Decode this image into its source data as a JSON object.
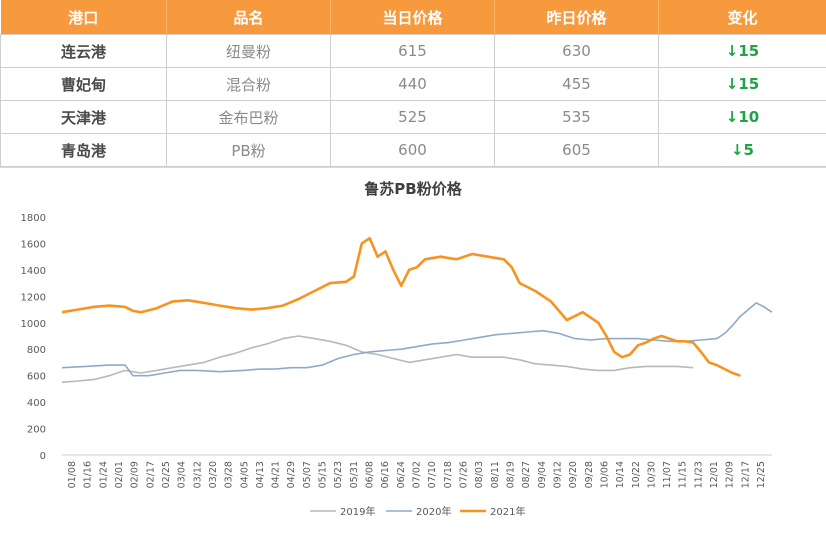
{
  "table": {
    "headers": [
      "港口",
      "品名",
      "当日价格",
      "昨日价格",
      "变化"
    ],
    "rows": [
      {
        "port": "连云港",
        "product": "纽曼粉",
        "today": "615",
        "yesterday": "630",
        "change": "↓15"
      },
      {
        "port": "曹妃甸",
        "product": "混合粉",
        "today": "440",
        "yesterday": "455",
        "change": "↓15"
      },
      {
        "port": "天津港",
        "product": "金布巴粉",
        "today": "525",
        "yesterday": "535",
        "change": "↓10"
      },
      {
        "port": "青岛港",
        "product": "PB粉",
        "today": "600",
        "yesterday": "605",
        "change": "↓5"
      }
    ]
  },
  "colors": {
    "header_bg": "#f79a3e",
    "change_down": "#1fa344",
    "s2019": "#b8b8b8",
    "s2020": "#8eaacb",
    "s2021": "#f7931e"
  },
  "chart_data": {
    "type": "line",
    "title": "鲁苏PB粉价格",
    "xlabel": "",
    "ylabel": "",
    "ylim": [
      0,
      1800
    ],
    "yticks": [
      "0",
      "200",
      "400",
      "600",
      "800",
      "1000",
      "1200",
      "1400",
      "1600",
      "1800"
    ],
    "categories": [
      "01/08",
      "01/16",
      "01/24",
      "02/01",
      "02/09",
      "02/17",
      "02/25",
      "03/04",
      "03/12",
      "03/20",
      "03/28",
      "04/05",
      "04/13",
      "04/21",
      "04/29",
      "05/07",
      "05/15",
      "05/23",
      "05/31",
      "06/08",
      "06/16",
      "06/24",
      "07/02",
      "07/10",
      "07/18",
      "07/26",
      "08/03",
      "08/11",
      "08/19",
      "08/27",
      "09/04",
      "09/12",
      "09/20",
      "09/28",
      "10/06",
      "10/14",
      "10/22",
      "10/30",
      "11/07",
      "11/15",
      "11/23",
      "12/01",
      "12/09",
      "12/17",
      "12/25"
    ],
    "legend_position": "bottom",
    "grid": false,
    "series": [
      {
        "name": "2019年",
        "color": "#b8b8b8",
        "points": [
          [
            0,
            550
          ],
          [
            2,
            560
          ],
          [
            4,
            570
          ],
          [
            6,
            600
          ],
          [
            8,
            640
          ],
          [
            10,
            620
          ],
          [
            12,
            640
          ],
          [
            14,
            660
          ],
          [
            16,
            680
          ],
          [
            18,
            700
          ],
          [
            20,
            740
          ],
          [
            22,
            770
          ],
          [
            24,
            810
          ],
          [
            26,
            840
          ],
          [
            28,
            880
          ],
          [
            30,
            900
          ],
          [
            32,
            880
          ],
          [
            34,
            860
          ],
          [
            36,
            830
          ],
          [
            38,
            780
          ],
          [
            40,
            760
          ],
          [
            42,
            730
          ],
          [
            44,
            700
          ],
          [
            46,
            720
          ],
          [
            48,
            740
          ],
          [
            50,
            760
          ],
          [
            52,
            740
          ],
          [
            54,
            740
          ],
          [
            56,
            740
          ],
          [
            58,
            720
          ],
          [
            60,
            690
          ],
          [
            62,
            680
          ],
          [
            64,
            670
          ],
          [
            66,
            650
          ],
          [
            68,
            640
          ],
          [
            70,
            640
          ],
          [
            72,
            660
          ],
          [
            74,
            670
          ],
          [
            76,
            670
          ],
          [
            78,
            670
          ],
          [
            80,
            660
          ]
        ]
      },
      {
        "name": "2020年",
        "color": "#8eaacb",
        "points": [
          [
            0,
            660
          ],
          [
            3,
            670
          ],
          [
            6,
            680
          ],
          [
            8,
            680
          ],
          [
            9,
            600
          ],
          [
            11,
            600
          ],
          [
            13,
            620
          ],
          [
            15,
            640
          ],
          [
            17,
            640
          ],
          [
            20,
            630
          ],
          [
            23,
            640
          ],
          [
            25,
            650
          ],
          [
            27,
            650
          ],
          [
            29,
            660
          ],
          [
            31,
            660
          ],
          [
            33,
            680
          ],
          [
            35,
            730
          ],
          [
            37,
            760
          ],
          [
            39,
            780
          ],
          [
            41,
            790
          ],
          [
            43,
            800
          ],
          [
            45,
            820
          ],
          [
            47,
            840
          ],
          [
            49,
            850
          ],
          [
            51,
            870
          ],
          [
            53,
            890
          ],
          [
            55,
            910
          ],
          [
            57,
            920
          ],
          [
            59,
            930
          ],
          [
            61,
            940
          ],
          [
            63,
            920
          ],
          [
            65,
            880
          ],
          [
            67,
            870
          ],
          [
            69,
            880
          ],
          [
            71,
            880
          ],
          [
            73,
            880
          ],
          [
            75,
            870
          ],
          [
            77,
            860
          ],
          [
            79,
            860
          ],
          [
            81,
            870
          ],
          [
            83,
            880
          ],
          [
            84,
            920
          ],
          [
            85,
            980
          ],
          [
            86,
            1050
          ],
          [
            87,
            1100
          ],
          [
            88,
            1150
          ],
          [
            89,
            1120
          ],
          [
            90,
            1080
          ]
        ]
      },
      {
        "name": "2021年",
        "color": "#f7931e",
        "points": [
          [
            0,
            1080
          ],
          [
            2,
            1100
          ],
          [
            4,
            1120
          ],
          [
            6,
            1130
          ],
          [
            8,
            1120
          ],
          [
            9,
            1090
          ],
          [
            10,
            1080
          ],
          [
            12,
            1110
          ],
          [
            14,
            1160
          ],
          [
            16,
            1170
          ],
          [
            18,
            1150
          ],
          [
            20,
            1130
          ],
          [
            22,
            1110
          ],
          [
            24,
            1100
          ],
          [
            26,
            1110
          ],
          [
            28,
            1130
          ],
          [
            30,
            1180
          ],
          [
            32,
            1240
          ],
          [
            34,
            1300
          ],
          [
            36,
            1310
          ],
          [
            37,
            1350
          ],
          [
            38,
            1600
          ],
          [
            39,
            1640
          ],
          [
            40,
            1500
          ],
          [
            41,
            1540
          ],
          [
            42,
            1400
          ],
          [
            43,
            1280
          ],
          [
            44,
            1400
          ],
          [
            45,
            1420
          ],
          [
            46,
            1480
          ],
          [
            48,
            1500
          ],
          [
            50,
            1480
          ],
          [
            52,
            1520
          ],
          [
            54,
            1500
          ],
          [
            56,
            1480
          ],
          [
            57,
            1420
          ],
          [
            58,
            1300
          ],
          [
            60,
            1240
          ],
          [
            62,
            1160
          ],
          [
            64,
            1020
          ],
          [
            66,
            1080
          ],
          [
            68,
            1000
          ],
          [
            69,
            900
          ],
          [
            70,
            780
          ],
          [
            71,
            740
          ],
          [
            72,
            760
          ],
          [
            73,
            830
          ],
          [
            74,
            850
          ],
          [
            75,
            880
          ],
          [
            76,
            900
          ],
          [
            77,
            880
          ],
          [
            78,
            860
          ],
          [
            79,
            860
          ],
          [
            80,
            850
          ],
          [
            81,
            780
          ],
          [
            82,
            700
          ],
          [
            83,
            680
          ],
          [
            84,
            650
          ],
          [
            85,
            620
          ],
          [
            86,
            600
          ]
        ]
      }
    ]
  }
}
